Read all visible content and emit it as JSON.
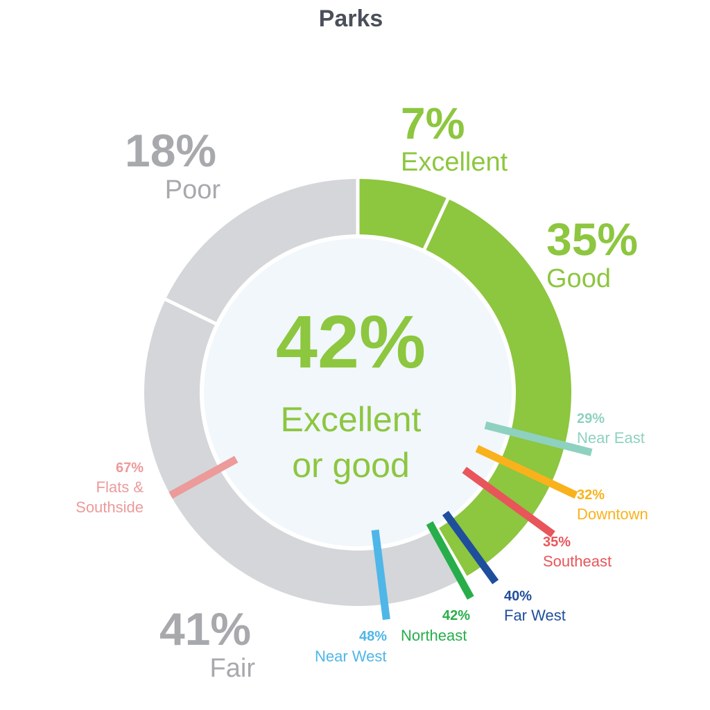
{
  "chart_data": {
    "type": "pie",
    "title": "Parks",
    "slices": [
      {
        "label": "Excellent",
        "pct_text": "7%",
        "value": 7,
        "color": "#8dc63f"
      },
      {
        "label": "Good",
        "pct_text": "35%",
        "value": 35,
        "color": "#8dc63f"
      },
      {
        "label": "Fair",
        "pct_text": "41%",
        "value": 41,
        "color": "#d4d6d9"
      },
      {
        "label": "Poor",
        "pct_text": "18%",
        "value": 18,
        "color": "#d4d6d9"
      }
    ],
    "center": {
      "value_text": "42%",
      "label_line1": "Excellent",
      "label_line2": "or good",
      "color": "#8dc63f"
    },
    "markers": [
      {
        "name": "Near East",
        "pct_text": "29%",
        "value": 29,
        "color": "#8ed1c0"
      },
      {
        "name": "Downtown",
        "pct_text": "32%",
        "value": 32,
        "color": "#f9b21b"
      },
      {
        "name": "Southeast",
        "pct_text": "35%",
        "value": 35,
        "color": "#e8555a"
      },
      {
        "name": "Far West",
        "pct_text": "40%",
        "value": 40,
        "color": "#1f4e9c"
      },
      {
        "name": "Northeast",
        "pct_text": "42%",
        "value": 42,
        "color": "#27ae4a"
      },
      {
        "name": "Near West",
        "pct_text": "48%",
        "value": 48,
        "color": "#4fb6e8"
      },
      {
        "name": "Flats &\nSouthside",
        "pct_text": "67%",
        "value": 67,
        "color": "#ec9a9a"
      }
    ],
    "colors": {
      "positive": "#8dc63f",
      "negative": "#d4d6d9",
      "negative_text": "#a7a9ad",
      "center_fill": "#f1f7fb",
      "title": "#4a4f5a"
    }
  }
}
